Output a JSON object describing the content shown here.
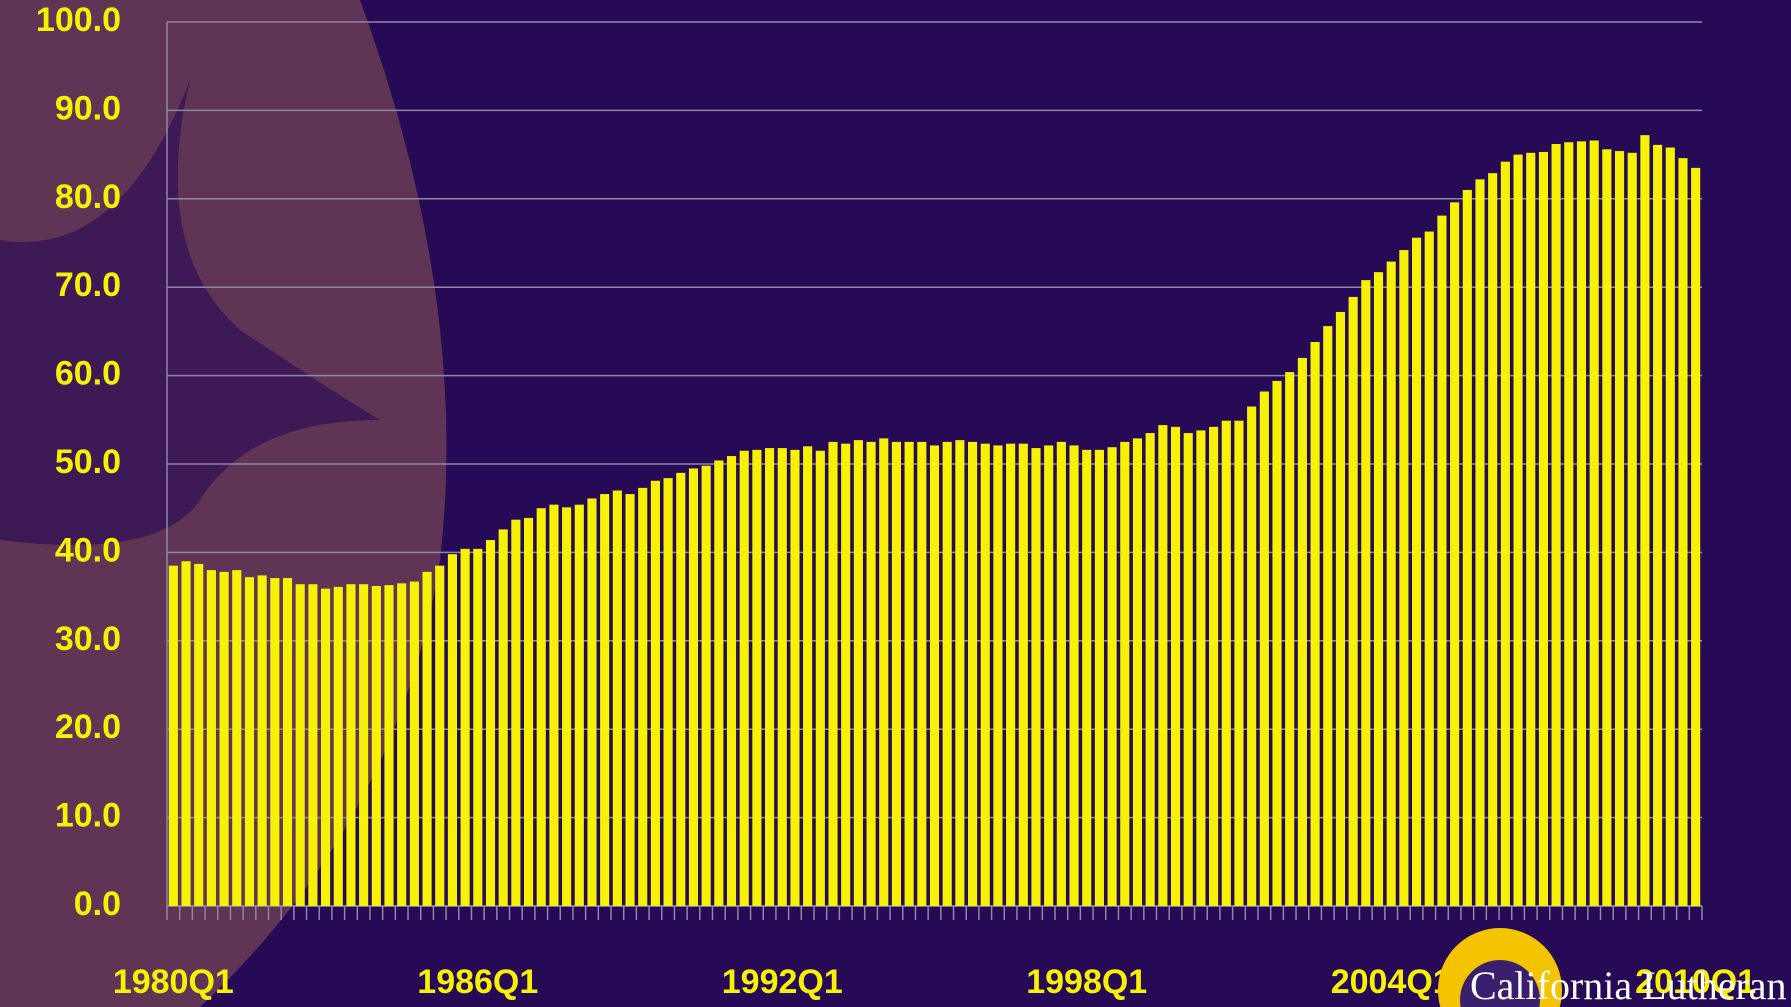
{
  "chart_data": {
    "type": "bar",
    "categories": [
      "1980Q1",
      null,
      null,
      null,
      null,
      null,
      null,
      null,
      null,
      null,
      null,
      null,
      null,
      null,
      null,
      null,
      null,
      null,
      null,
      null,
      null,
      null,
      null,
      null,
      "1986Q1",
      null,
      null,
      null,
      null,
      null,
      null,
      null,
      null,
      null,
      null,
      null,
      null,
      null,
      null,
      null,
      null,
      null,
      null,
      null,
      null,
      null,
      null,
      null,
      "1992Q1",
      null,
      null,
      null,
      null,
      null,
      null,
      null,
      null,
      null,
      null,
      null,
      null,
      null,
      null,
      null,
      null,
      null,
      null,
      null,
      null,
      null,
      null,
      null,
      "1998Q1",
      null,
      null,
      null,
      null,
      null,
      null,
      null,
      null,
      null,
      null,
      null,
      null,
      null,
      null,
      null,
      null,
      null,
      null,
      null,
      null,
      null,
      null,
      null,
      "2004Q1",
      null,
      null,
      null,
      null,
      null,
      null,
      null,
      null,
      null,
      null,
      null,
      null,
      null,
      null,
      null,
      null,
      null,
      null,
      null,
      null,
      null,
      null,
      null,
      "2010Q1"
    ],
    "values": [
      38.5,
      39.0,
      38.7,
      38.0,
      37.8,
      38.0,
      37.2,
      37.4,
      37.1,
      37.1,
      36.4,
      36.4,
      35.9,
      36.1,
      36.4,
      36.4,
      36.2,
      36.3,
      36.5,
      36.7,
      37.8,
      38.5,
      39.8,
      40.4,
      40.4,
      41.4,
      42.6,
      43.7,
      43.9,
      45.0,
      45.4,
      45.1,
      45.4,
      46.1,
      46.6,
      47.0,
      46.6,
      47.3,
      48.1,
      48.4,
      49.0,
      49.5,
      49.8,
      50.4,
      50.9,
      51.5,
      51.6,
      51.8,
      51.8,
      51.6,
      52.0,
      51.5,
      52.5,
      52.3,
      52.7,
      52.5,
      52.9,
      52.5,
      52.5,
      52.5,
      52.1,
      52.5,
      52.7,
      52.5,
      52.3,
      52.1,
      52.3,
      52.3,
      51.8,
      52.1,
      52.5,
      52.1,
      51.6,
      51.6,
      51.9,
      52.5,
      52.9,
      53.5,
      54.4,
      54.2,
      53.5,
      53.8,
      54.2,
      54.9,
      54.9,
      56.5,
      58.2,
      59.4,
      60.4,
      62.0,
      63.8,
      65.6,
      67.2,
      68.9,
      70.8,
      71.7,
      72.9,
      74.2,
      75.6,
      76.3,
      78.1,
      79.6,
      81.0,
      82.2,
      82.9,
      84.2,
      85.0,
      85.2,
      85.3,
      86.2,
      86.4,
      86.5,
      86.6,
      85.6,
      85.4,
      85.2,
      87.2,
      86.1,
      85.8,
      84.6,
      83.5
    ],
    "color": "#f7f205",
    "ylim": [
      0,
      100
    ],
    "yticks": [
      {
        "value": 0,
        "label": "0.0"
      },
      {
        "value": 10,
        "label": "10.0"
      },
      {
        "value": 20,
        "label": "20.0"
      },
      {
        "value": 30,
        "label": "30.0"
      },
      {
        "value": 40,
        "label": "40.0"
      },
      {
        "value": 50,
        "label": "50.0"
      },
      {
        "value": 60,
        "label": "60.0"
      },
      {
        "value": 70,
        "label": "70.0"
      },
      {
        "value": 80,
        "label": "80.0"
      },
      {
        "value": 90,
        "label": "90.0"
      },
      {
        "value": 100,
        "label": "100.0"
      }
    ],
    "grid": true
  },
  "logo_text": "California Lutheran"
}
